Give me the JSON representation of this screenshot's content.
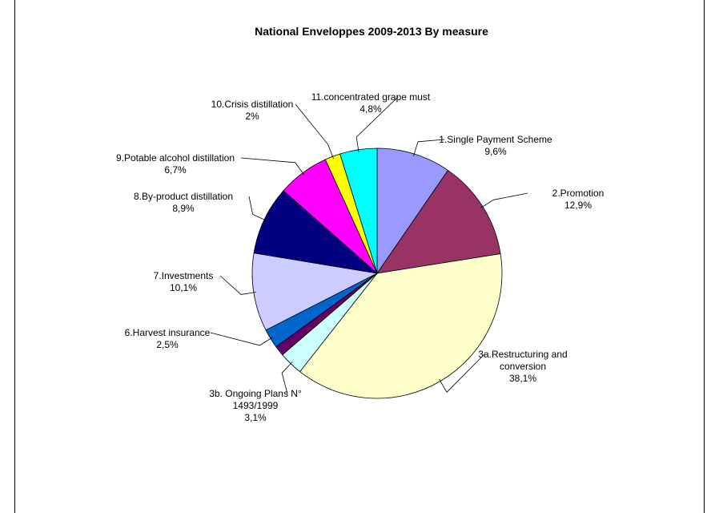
{
  "chart_data": {
    "type": "pie",
    "title": "National Enveloppes 2009-2013  By measure",
    "slices": [
      {
        "label": [
          "1.Single Payment Scheme"
        ],
        "value_text": "9,6%",
        "value": 9.6,
        "color": "#9999ff"
      },
      {
        "label": [
          "2.Promotion"
        ],
        "value_text": "12,9%",
        "value": 12.9,
        "color": "#993366"
      },
      {
        "label": [
          "3a.Restructuring and",
          "conversion"
        ],
        "value_text": "38,1%",
        "value": 38.1,
        "color": "#ffffcc"
      },
      {
        "label": [
          "3b. Ongoing Plans N°",
          "1493/1999"
        ],
        "value_text": "3,1%",
        "value": 3.1,
        "color": "#ccffff"
      },
      {
        "label": [],
        "value_text": "",
        "value": 1.3,
        "color": "#660066"
      },
      {
        "label": [
          "6.Harvest insurance"
        ],
        "value_text": "2,5%",
        "value": 2.5,
        "color": "#0066cc"
      },
      {
        "label": [
          "7.Investments"
        ],
        "value_text": "10,1%",
        "value": 10.1,
        "color": "#ccccff"
      },
      {
        "label": [
          "8.By-product distillation"
        ],
        "value_text": "8,9%",
        "value": 8.9,
        "color": "#000080"
      },
      {
        "label": [
          "9.Potable alcohol distillation"
        ],
        "value_text": "6,7%",
        "value": 6.7,
        "color": "#ff00ff"
      },
      {
        "label": [
          "10.Crisis distillation"
        ],
        "value_text": "2%",
        "value": 2.0,
        "color": "#ffff00"
      },
      {
        "label": [
          "11.concentrated grape must"
        ],
        "value_text": "4,8%",
        "value": 4.8,
        "color": "#00ffff"
      }
    ],
    "legend": "none"
  }
}
